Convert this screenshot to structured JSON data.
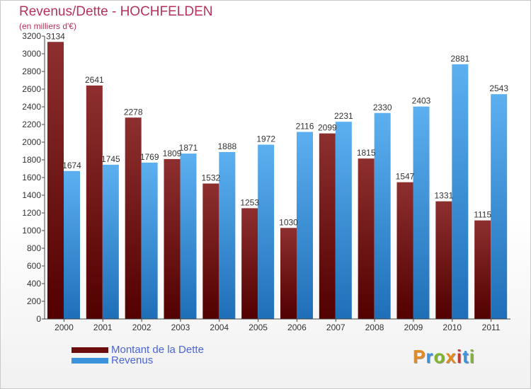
{
  "header": {
    "title": "Revenus/Dette - HOCHFELDEN",
    "subtitle": "(en milliers d'€)"
  },
  "colors": {
    "dette": "#7a1a1a",
    "revenus": "#3b93de",
    "title": "#b7325a",
    "legend_text": "#4a64d8"
  },
  "legend": {
    "items": [
      {
        "label": "Montant de la Dette",
        "color": "#6b0d0d"
      },
      {
        "label": "Revenus",
        "color": "#3b93de"
      }
    ]
  },
  "brand": {
    "letters": [
      "P",
      "r",
      "o",
      "x",
      "i",
      "t",
      "i"
    ],
    "colors": [
      "#e8891c",
      "#3b93de",
      "#7fb52a",
      "#e8891c",
      "#d8322a",
      "#3b93de",
      "#7fb52a"
    ]
  },
  "chart_data": {
    "type": "bar",
    "title": "Revenus/Dette - HOCHFELDEN",
    "subtitle": "(en milliers d'€)",
    "categories": [
      "2000",
      "2001",
      "2002",
      "2003",
      "2004",
      "2005",
      "2006",
      "2007",
      "2008",
      "2009",
      "2010",
      "2011"
    ],
    "series": [
      {
        "name": "Montant de la Dette",
        "values": [
          3134,
          2641,
          2278,
          1809,
          1532,
          1253,
          1030,
          2099,
          1815,
          1547,
          1331,
          1115
        ]
      },
      {
        "name": "Revenus",
        "values": [
          1674,
          1745,
          1769,
          1871,
          1888,
          1972,
          2116,
          2231,
          2330,
          2403,
          2881,
          2543
        ]
      }
    ],
    "ylim": [
      0,
      3200
    ],
    "yticks": [
      0,
      200,
      400,
      600,
      800,
      1000,
      1200,
      1400,
      1600,
      1800,
      2000,
      2200,
      2400,
      2600,
      2800,
      3000,
      3200
    ],
    "grid": false,
    "legend_position": "bottom-left"
  }
}
